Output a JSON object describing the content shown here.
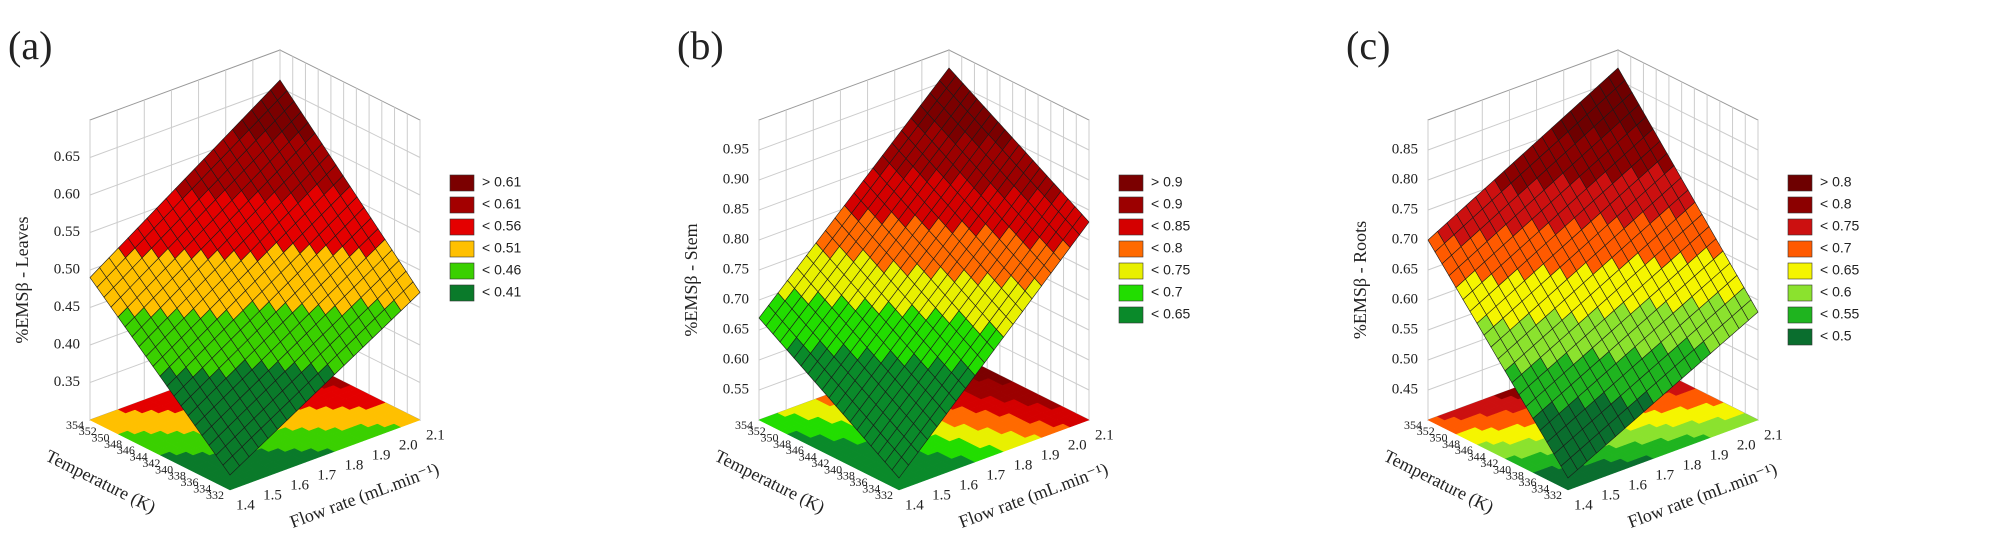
{
  "chart_data": [
    {
      "type": "surface",
      "label": "(a)",
      "zlabel": "%EMSβ - Leaves",
      "xlabel": "Flow rate (mL.min⁻¹)",
      "ylabel": "Temperature (K)",
      "xlim": [
        1.4,
        2.1
      ],
      "ylim": [
        332,
        354
      ],
      "zlim": [
        0.3,
        0.7
      ],
      "xticks": [
        1.4,
        1.5,
        1.6,
        1.7,
        1.8,
        1.9,
        {
          "value": 2,
          "label": "2.0"
        },
        2.1
      ],
      "yticks": [
        332,
        334,
        336,
        338,
        340,
        342,
        344,
        346,
        348,
        350,
        352,
        354
      ],
      "zticks": [
        0.35,
        {
          "value": 0.4,
          "label": "0.40"
        },
        0.45,
        {
          "value": 0.5,
          "label": "0.50"
        },
        0.55,
        {
          "value": 0.6,
          "label": "0.60"
        },
        0.65
      ],
      "z": [
        [
          0.32,
          0.47
        ],
        [
          0.49,
          0.66
        ]
      ],
      "grid": true,
      "legend": [
        {
          "value": 0.61,
          "label": "> 0.61",
          "color": "#7b0000"
        },
        {
          "value": 0.61,
          "label": "< 0.61",
          "color": "#a30000"
        },
        {
          "value": 0.56,
          "label": "< 0.56",
          "color": "#e40000"
        },
        {
          "value": 0.51,
          "label": "< 0.51",
          "color": "#ffc000"
        },
        {
          "value": 0.46,
          "label": "< 0.46",
          "color": "#3ad000"
        },
        {
          "value": 0.41,
          "label": "< 0.41",
          "color": "#0a7a2a"
        }
      ]
    },
    {
      "type": "surface",
      "label": "(b)",
      "zlabel": "%EMSβ - Stem",
      "xlabel": "Flow rate (mL.min⁻¹)",
      "ylabel": "Temperature (K)",
      "xlim": [
        1.4,
        2.1
      ],
      "ylim": [
        332,
        354
      ],
      "zlim": [
        0.5,
        1.0
      ],
      "xticks": [
        1.4,
        1.5,
        1.6,
        1.7,
        1.8,
        1.9,
        {
          "value": 2,
          "label": "2.0"
        },
        2.1
      ],
      "yticks": [
        332,
        334,
        336,
        338,
        340,
        342,
        344,
        346,
        348,
        350,
        352,
        354
      ],
      "zticks": [
        0.55,
        {
          "value": 0.6,
          "label": "0.60"
        },
        0.65,
        {
          "value": 0.7,
          "label": "0.70"
        },
        0.75,
        {
          "value": 0.8,
          "label": "0.80"
        },
        0.85,
        {
          "value": 0.9,
          "label": "0.90"
        },
        0.95
      ],
      "z": [
        [
          0.52,
          0.83
        ],
        [
          0.67,
          0.97
        ]
      ],
      "grid": true,
      "legend": [
        {
          "value": 0.9,
          "label": "> 0.9",
          "color": "#7b0000"
        },
        {
          "value": 0.9,
          "label": "< 0.9",
          "color": "#9c0000"
        },
        {
          "value": 0.85,
          "label": "< 0.85",
          "color": "#d40000"
        },
        {
          "value": 0.8,
          "label": "< 0.8",
          "color": "#ff6a00"
        },
        {
          "value": 0.75,
          "label": "< 0.75",
          "color": "#e8f000"
        },
        {
          "value": 0.7,
          "label": "< 0.7",
          "color": "#22dd00"
        },
        {
          "value": 0.65,
          "label": "< 0.65",
          "color": "#0a8a2a"
        }
      ]
    },
    {
      "type": "surface",
      "label": "(c)",
      "zlabel": "%EMSβ - Roots",
      "xlabel": "Flow rate (mL.min⁻¹)",
      "ylabel": "Temperature (K)",
      "xlim": [
        1.4,
        2.1
      ],
      "ylim": [
        332,
        354
      ],
      "zlim": [
        0.4,
        0.9
      ],
      "xticks": [
        1.4,
        1.5,
        1.6,
        1.7,
        1.8,
        1.9,
        {
          "value": 2,
          "label": "2.0"
        },
        2.1
      ],
      "yticks": [
        332,
        334,
        336,
        338,
        340,
        342,
        344,
        346,
        348,
        350,
        352,
        354
      ],
      "zticks": [
        0.45,
        {
          "value": 0.5,
          "label": "0.50"
        },
        0.55,
        {
          "value": 0.6,
          "label": "0.60"
        },
        0.65,
        {
          "value": 0.7,
          "label": "0.70"
        },
        0.75,
        {
          "value": 0.8,
          "label": "0.80"
        },
        0.85
      ],
      "z": [
        [
          0.42,
          0.58
        ],
        [
          0.7,
          0.87
        ]
      ],
      "grid": true,
      "legend": [
        {
          "value": 0.8,
          "label": "> 0.8",
          "color": "#6e0000"
        },
        {
          "value": 0.8,
          "label": "< 0.8",
          "color": "#8c0000"
        },
        {
          "value": 0.75,
          "label": "< 0.75",
          "color": "#cc1010"
        },
        {
          "value": 0.7,
          "label": "< 0.7",
          "color": "#ff5a00"
        },
        {
          "value": 0.65,
          "label": "< 0.65",
          "color": "#f5f500"
        },
        {
          "value": 0.6,
          "label": "< 0.6",
          "color": "#8be22e"
        },
        {
          "value": 0.55,
          "label": "< 0.55",
          "color": "#1fb41f"
        },
        {
          "value": 0.5,
          "label": "< 0.5",
          "color": "#0a6e2e"
        }
      ]
    }
  ]
}
